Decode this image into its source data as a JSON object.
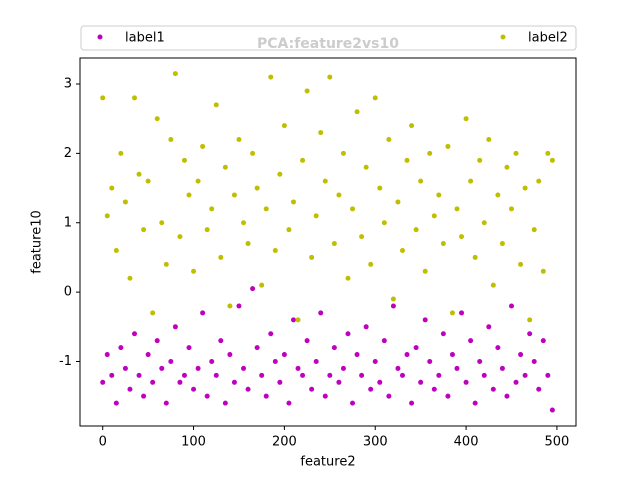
{
  "chart_data": {
    "type": "scatter",
    "title": "PCA:feature2vs10",
    "x_label": "feature2",
    "y_label": "feature10",
    "xlim": [
      -25,
      521
    ],
    "ylim": [
      -1.93,
      3.375
    ],
    "xticks": [
      0,
      100,
      200,
      300,
      400,
      500
    ],
    "yticks": [
      -1,
      0,
      1,
      2,
      3
    ],
    "legend": "top",
    "series": [
      {
        "name": "label1",
        "color": "#bf00bf",
        "x": [
          0,
          5,
          10,
          15,
          20,
          25,
          30,
          35,
          40,
          45,
          50,
          55,
          60,
          65,
          70,
          75,
          80,
          85,
          90,
          95,
          100,
          105,
          110,
          115,
          120,
          125,
          130,
          135,
          140,
          145,
          150,
          155,
          160,
          165,
          170,
          175,
          180,
          185,
          190,
          195,
          200,
          205,
          210,
          215,
          220,
          225,
          230,
          235,
          240,
          245,
          250,
          255,
          260,
          265,
          270,
          275,
          280,
          285,
          290,
          295,
          300,
          305,
          310,
          315,
          320,
          325,
          330,
          335,
          340,
          345,
          350,
          355,
          360,
          365,
          370,
          375,
          380,
          385,
          390,
          395,
          400,
          405,
          410,
          415,
          420,
          425,
          430,
          435,
          440,
          445,
          450,
          455,
          460,
          465,
          470,
          475,
          480,
          485,
          490,
          495
        ],
        "values": [
          -1.3,
          -0.9,
          -1.2,
          -1.6,
          -0.8,
          -1.1,
          -1.4,
          -0.6,
          -1.2,
          -1.5,
          -0.9,
          -1.3,
          -0.7,
          -1.1,
          -1.6,
          -1.0,
          -0.5,
          -1.3,
          -1.2,
          -0.8,
          -1.4,
          -1.1,
          -0.3,
          -1.5,
          -1.0,
          -1.2,
          -0.7,
          -1.6,
          -0.9,
          -1.3,
          -0.2,
          -1.1,
          -1.4,
          0.05,
          -0.8,
          -1.2,
          -1.5,
          -0.6,
          -1.0,
          -1.3,
          -0.9,
          -1.6,
          -0.4,
          -1.1,
          -1.2,
          -0.7,
          -1.4,
          -1.0,
          -0.3,
          -1.5,
          -1.2,
          -0.8,
          -1.3,
          -1.1,
          -0.6,
          -1.6,
          -0.9,
          -1.2,
          -0.5,
          -1.4,
          -1.0,
          -1.3,
          -0.7,
          -1.5,
          -0.2,
          -1.1,
          -1.2,
          -0.9,
          -1.6,
          -0.8,
          -1.3,
          -0.4,
          -1.0,
          -1.4,
          -1.2,
          -0.6,
          -1.5,
          -0.9,
          -1.1,
          -0.3,
          -1.3,
          -0.7,
          -1.6,
          -1.0,
          -1.2,
          -0.5,
          -1.4,
          -0.8,
          -1.1,
          -1.5,
          -0.2,
          -1.3,
          -0.9,
          -1.2,
          -0.6,
          -1.0,
          -1.4,
          -0.7,
          -1.2,
          -1.7
        ]
      },
      {
        "name": "label2",
        "color": "#bfbf00",
        "x": [
          0,
          5,
          10,
          15,
          20,
          25,
          30,
          35,
          40,
          45,
          50,
          55,
          60,
          65,
          70,
          75,
          80,
          85,
          90,
          95,
          100,
          105,
          110,
          115,
          120,
          125,
          130,
          135,
          140,
          145,
          150,
          155,
          160,
          165,
          170,
          175,
          180,
          185,
          190,
          195,
          200,
          205,
          210,
          215,
          220,
          225,
          230,
          235,
          240,
          245,
          250,
          255,
          260,
          265,
          270,
          275,
          280,
          285,
          290,
          295,
          300,
          305,
          310,
          315,
          320,
          325,
          330,
          335,
          340,
          345,
          350,
          355,
          360,
          365,
          370,
          375,
          380,
          385,
          390,
          395,
          400,
          405,
          410,
          415,
          420,
          425,
          430,
          435,
          440,
          445,
          450,
          455,
          460,
          465,
          470,
          475,
          480,
          485,
          490,
          495
        ],
        "values": [
          2.8,
          1.1,
          1.5,
          0.6,
          2.0,
          1.3,
          0.2,
          2.8,
          1.7,
          0.9,
          1.6,
          -0.3,
          2.5,
          1.0,
          0.4,
          2.2,
          3.15,
          0.8,
          1.9,
          1.4,
          0.3,
          1.6,
          2.1,
          0.9,
          1.2,
          2.7,
          0.5,
          1.8,
          -0.2,
          1.4,
          2.2,
          1.0,
          0.7,
          2.0,
          1.5,
          0.1,
          1.2,
          3.1,
          0.6,
          1.7,
          2.4,
          0.9,
          1.3,
          -0.4,
          1.9,
          2.9,
          0.5,
          1.1,
          2.3,
          1.6,
          3.1,
          0.7,
          1.4,
          2.0,
          0.2,
          1.2,
          2.6,
          0.8,
          1.8,
          0.4,
          2.8,
          1.5,
          1.0,
          2.2,
          -0.1,
          1.3,
          0.6,
          1.9,
          2.4,
          0.9,
          1.6,
          0.3,
          2.0,
          1.1,
          1.4,
          0.7,
          2.1,
          -0.3,
          1.2,
          0.8,
          2.5,
          1.6,
          0.5,
          1.9,
          1.0,
          2.2,
          0.1,
          1.4,
          0.7,
          1.8,
          1.2,
          2.0,
          0.4,
          1.5,
          -0.4,
          0.9,
          1.6,
          0.3,
          2.0,
          1.9
        ]
      }
    ]
  }
}
